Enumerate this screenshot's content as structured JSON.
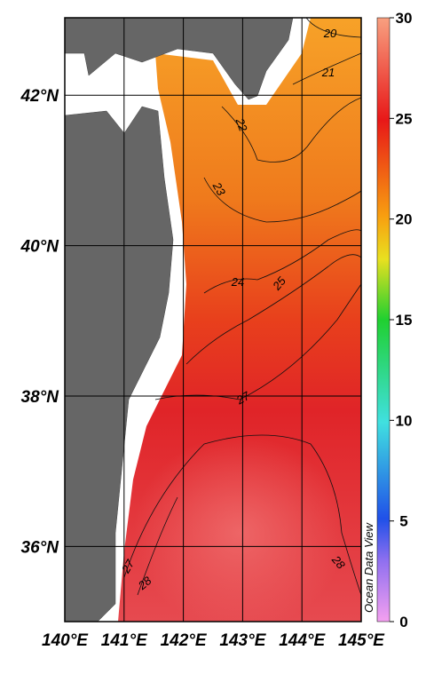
{
  "map": {
    "lon_lim": [
      140,
      145
    ],
    "lat_lim": [
      35,
      43.03
    ],
    "lat_labels": [
      {
        "value": 42,
        "label": "42°N"
      },
      {
        "value": 40,
        "label": "40°N"
      },
      {
        "value": 38,
        "label": "38°N"
      },
      {
        "value": 36,
        "label": "36°N"
      }
    ],
    "lon_labels": [
      {
        "value": 140,
        "label": "140°E"
      },
      {
        "value": 141,
        "label": "141°E"
      },
      {
        "value": 142,
        "label": "142°E"
      },
      {
        "value": 143,
        "label": "143°E"
      },
      {
        "value": 144,
        "label": "144°E"
      },
      {
        "value": 145,
        "label": "145°E"
      }
    ],
    "colorbar": {
      "lim": [
        0,
        30
      ],
      "ticks": [
        0,
        5,
        10,
        15,
        20,
        25,
        30
      ]
    },
    "contour_labels": [
      20,
      21,
      22,
      23,
      24,
      25,
      27,
      27,
      28,
      28
    ],
    "watermark": "Ocean Data View"
  }
}
